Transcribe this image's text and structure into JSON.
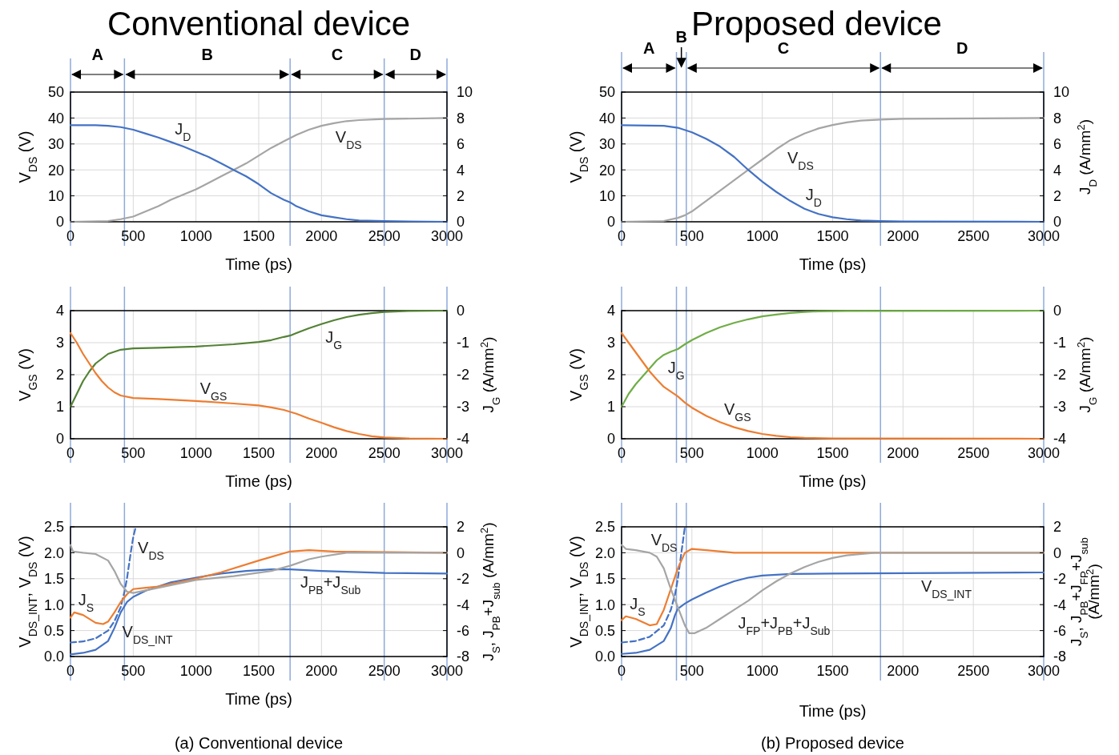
{
  "chart_data": [
    {
      "type": "line",
      "title": "Conventional device",
      "xlabel": "Time (ps)",
      "ylabel": "V$_{DS}$ (V)",
      "xlim": [
        0,
        3000
      ],
      "xticks": [
        0,
        500,
        1000,
        1500,
        2000,
        2500,
        3000
      ],
      "ylim": [
        0,
        50
      ],
      "yticks": [
        0,
        10,
        20,
        30,
        40,
        50
      ],
      "y2lim": [
        0,
        10
      ],
      "y2ticks": [
        0,
        2,
        4,
        6,
        8,
        10
      ],
      "grid": true,
      "series": [
        {
          "color": "#a5a5a5",
          "x": [
            0,
            300,
            400,
            500,
            600,
            700,
            800,
            900,
            1000,
            1100,
            1200,
            1300,
            1400,
            1500,
            1600,
            1700,
            1800,
            1900,
            2000,
            2100,
            2200,
            2300,
            2500,
            3000
          ],
          "values": [
            0,
            0.3,
            1,
            2,
            4,
            6,
            8.5,
            10.5,
            12.5,
            15,
            17.5,
            20,
            22.5,
            25.5,
            28.5,
            31,
            33.5,
            35.5,
            37,
            38,
            38.8,
            39.2,
            39.6,
            40
          ]
        },
        {
          "color": "#4472c4",
          "axis": "y2",
          "x": [
            0,
            200,
            300,
            400,
            500,
            600,
            700,
            800,
            900,
            1000,
            1100,
            1200,
            1300,
            1400,
            1500,
            1600,
            1700,
            1750,
            1800,
            1900,
            2000,
            2100,
            2200,
            2300,
            2500,
            3000
          ],
          "values": [
            7.45,
            7.45,
            7.4,
            7.3,
            7.1,
            6.8,
            6.5,
            6.15,
            5.8,
            5.4,
            5.0,
            4.5,
            4.0,
            3.5,
            2.9,
            2.2,
            1.7,
            1.5,
            1.2,
            0.8,
            0.5,
            0.35,
            0.2,
            0.1,
            0.05,
            0
          ]
        }
      ],
      "ref_lines": [
        {
          "axis": "x",
          "value": 0,
          "color": "#8eaadb"
        },
        {
          "axis": "x",
          "value": 430,
          "color": "#8eaadb"
        },
        {
          "axis": "x",
          "value": 1750,
          "color": "#8eaadb"
        },
        {
          "axis": "x",
          "value": 2500,
          "color": "#8eaadb"
        },
        {
          "axis": "x",
          "value": 3000,
          "color": "#8eaadb"
        }
      ],
      "annotations": [
        {
          "text": "J$_{D}$",
          "x": 800,
          "y": 30.75
        },
        {
          "text": "V$_{DS}$",
          "x": 2080,
          "y": 37.8
        },
        "A",
        "B",
        "C",
        "D"
      ]
    },
    {
      "type": "line",
      "title": "Proposed device",
      "xlabel": "Time (ps)",
      "ylabel": "V$_{DS}$ (V)",
      "y2label": "J$_{D}$ (A/mm$^{2}$)",
      "xlim": [
        0,
        3000
      ],
      "xticks": [
        0,
        500,
        1000,
        1500,
        2000,
        2500,
        3000
      ],
      "ylim": [
        0,
        50
      ],
      "yticks": [
        0,
        10,
        20,
        30,
        40,
        50
      ],
      "y2lim": [
        0,
        10
      ],
      "y2ticks": [
        0,
        2,
        4,
        6,
        8,
        10
      ],
      "grid": true,
      "series": [
        {
          "color": "#a5a5a5",
          "x": [
            0,
            300,
            400,
            450,
            500,
            600,
            700,
            800,
            900,
            1000,
            1100,
            1200,
            1300,
            1400,
            1500,
            1600,
            1700,
            1840,
            2000,
            3000
          ],
          "values": [
            0,
            0.3,
            1.5,
            2.5,
            4,
            8,
            12,
            16,
            20,
            24,
            28,
            31.5,
            34,
            36,
            37.3,
            38.3,
            39,
            39.4,
            39.7,
            40
          ]
        },
        {
          "color": "#4472c4",
          "axis": "y2",
          "x": [
            0,
            300,
            400,
            500,
            600,
            700,
            800,
            900,
            1000,
            1100,
            1200,
            1300,
            1400,
            1500,
            1600,
            1700,
            1840,
            2000,
            3000
          ],
          "values": [
            7.45,
            7.4,
            7.25,
            6.9,
            6.4,
            5.8,
            5.0,
            4.0,
            3.1,
            2.3,
            1.6,
            1.0,
            0.6,
            0.35,
            0.2,
            0.1,
            0.05,
            0.02,
            0
          ]
        }
      ],
      "ref_lines": [
        {
          "axis": "x",
          "value": 0,
          "color": "#8eaadb"
        },
        {
          "axis": "x",
          "value": 390,
          "color": "#8eaadb"
        },
        {
          "axis": "x",
          "value": 460,
          "color": "#8eaadb"
        },
        {
          "axis": "x",
          "value": 1840,
          "color": "#8eaadb"
        },
        {
          "axis": "x",
          "value": 3000,
          "color": "#8eaadb"
        }
      ],
      "annotations": [
        {
          "text": "V$_{DS}$",
          "x": 1150,
          "y": 29.75
        },
        {
          "text": "J$_{D}$",
          "x": 1280,
          "y": 5.6
        },
        "A",
        "B",
        "C",
        "D"
      ]
    },
    {
      "type": "line",
      "xlabel": "Time (ps)",
      "ylabel": "V$_{GS}$ (V)",
      "y2label": "J$_{G}$ (A/mm$^{2}$)",
      "xlim": [
        0,
        3000
      ],
      "xticks": [
        0,
        500,
        1000,
        1500,
        2000,
        2500,
        3000
      ],
      "ylim": [
        0,
        4
      ],
      "yticks": [
        0,
        1,
        2,
        3,
        4
      ],
      "y2lim": [
        -4,
        0
      ],
      "y2ticks": [
        -4,
        -3,
        -2,
        -1,
        0
      ],
      "grid": true,
      "series": [
        {
          "color": "#548235",
          "axis": "y2",
          "x": [
            0,
            50,
            100,
            150,
            200,
            300,
            400,
            500,
            700,
            1000,
            1300,
            1500,
            1600,
            1700,
            1750,
            1800,
            1900,
            2000,
            2100,
            2200,
            2300,
            2400,
            2500,
            2700,
            3000
          ],
          "values": [
            -3,
            -2.6,
            -2.2,
            -1.9,
            -1.65,
            -1.35,
            -1.22,
            -1.18,
            -1.16,
            -1.12,
            -1.05,
            -0.98,
            -0.92,
            -0.82,
            -0.78,
            -0.7,
            -0.55,
            -0.42,
            -0.3,
            -0.2,
            -0.13,
            -0.08,
            -0.04,
            -0.01,
            0
          ]
        },
        {
          "color": "#ed7d31",
          "x": [
            0,
            50,
            100,
            150,
            200,
            250,
            300,
            350,
            400,
            500,
            700,
            1000,
            1300,
            1500,
            1600,
            1700,
            1800,
            1900,
            2000,
            2100,
            2200,
            2300,
            2400,
            2500,
            2700,
            3000
          ],
          "values": [
            3.3,
            3.0,
            2.65,
            2.35,
            2.05,
            1.8,
            1.6,
            1.45,
            1.35,
            1.27,
            1.24,
            1.18,
            1.1,
            1.04,
            0.98,
            0.9,
            0.78,
            0.63,
            0.5,
            0.36,
            0.24,
            0.15,
            0.08,
            0.04,
            0.01,
            0
          ]
        }
      ],
      "ref_lines": [
        {
          "axis": "x",
          "value": 0,
          "color": "#8eaadb"
        },
        {
          "axis": "x",
          "value": 430,
          "color": "#8eaadb"
        },
        {
          "axis": "x",
          "value": 1750,
          "color": "#8eaadb"
        },
        {
          "axis": "x",
          "value": 2500,
          "color": "#8eaadb"
        },
        {
          "axis": "x",
          "value": 3000,
          "color": "#8eaadb"
        }
      ],
      "annotations": [
        {
          "text": "J$_{G}$",
          "x": 2000,
          "y": 3.58
        },
        {
          "text": "V$_{GS}$",
          "x": 1000,
          "y": 1.18
        }
      ]
    },
    {
      "type": "line",
      "xlabel": "Time (ps)",
      "ylabel": "V$_{GS}$ (V)",
      "y2label": "J$_{G}$ (A/mm$^{2}$)",
      "xlim": [
        0,
        3000
      ],
      "xticks": [
        0,
        500,
        1000,
        1500,
        2000,
        2500,
        3000
      ],
      "ylim": [
        0,
        4
      ],
      "yticks": [
        0,
        1,
        2,
        3,
        4
      ],
      "y2lim": [
        -4,
        0
      ],
      "y2ticks": [
        -4,
        -3,
        -2,
        -1,
        0
      ],
      "grid": true,
      "series": [
        {
          "color": "#70ad47",
          "axis": "y2",
          "x": [
            0,
            50,
            100,
            150,
            200,
            250,
            300,
            350,
            400,
            450,
            500,
            600,
            700,
            800,
            900,
            1000,
            1100,
            1200,
            1300,
            1400,
            1600,
            3000
          ],
          "values": [
            -3,
            -2.6,
            -2.3,
            -2.05,
            -1.8,
            -1.55,
            -1.38,
            -1.28,
            -1.2,
            -1.05,
            -0.92,
            -0.7,
            -0.52,
            -0.38,
            -0.27,
            -0.18,
            -0.12,
            -0.07,
            -0.04,
            -0.02,
            -0.01,
            0
          ]
        },
        {
          "color": "#ed7d31",
          "x": [
            0,
            50,
            100,
            150,
            200,
            250,
            300,
            350,
            400,
            450,
            500,
            600,
            700,
            800,
            900,
            1000,
            1100,
            1200,
            1300,
            1500,
            3000
          ],
          "values": [
            3.3,
            3.0,
            2.7,
            2.4,
            2.1,
            1.85,
            1.62,
            1.47,
            1.32,
            1.13,
            0.97,
            0.72,
            0.52,
            0.36,
            0.24,
            0.15,
            0.09,
            0.05,
            0.03,
            0.01,
            0
          ]
        }
      ],
      "ref_lines": [
        {
          "axis": "x",
          "value": 0,
          "color": "#8eaadb"
        },
        {
          "axis": "x",
          "value": 390,
          "color": "#8eaadb"
        },
        {
          "axis": "x",
          "value": 460,
          "color": "#8eaadb"
        },
        {
          "axis": "x",
          "value": 1840,
          "color": "#8eaadb"
        },
        {
          "axis": "x",
          "value": 3000,
          "color": "#8eaadb"
        }
      ],
      "annotations": [
        {
          "text": "J$_{G}$",
          "x": 300,
          "y": 2.62
        },
        {
          "text": "V$_{GS}$",
          "x": 700,
          "y": 0.52
        }
      ]
    },
    {
      "type": "line",
      "xlabel": "Time (ps)",
      "ylabel": "V$_{DS_INT}$, V$_{DS}$ (V)",
      "y2label": "J$_{S}$, J$_{PB}$+J$_{sub}$ (A/mm$^{2}$)",
      "xlim": [
        0,
        3000
      ],
      "xticks": [
        0,
        500,
        1000,
        1500,
        2000,
        2500,
        3000
      ],
      "ylim": [
        0,
        2.5
      ],
      "yticks": [
        {
          "value": 0,
          "label": "0.0"
        },
        {
          "value": 0.5,
          "label": "0.5"
        },
        {
          "value": 1,
          "label": "1.0"
        },
        {
          "value": 1.5,
          "label": "1.5"
        },
        {
          "value": 2,
          "label": "2.0"
        },
        {
          "value": 2.5,
          "label": "2.5"
        }
      ],
      "y2lim": [
        -8,
        2
      ],
      "y2ticks": [
        -8,
        -6,
        -4,
        -2,
        0,
        2
      ],
      "grid": true,
      "series": [
        {
          "color": "#4472c4",
          "line_style": "dashed",
          "x": [
            0,
            100,
            200,
            300,
            350,
            400,
            430,
            450,
            480,
            500,
            520
          ],
          "values": [
            0.27,
            0.29,
            0.35,
            0.5,
            0.68,
            0.95,
            1.25,
            1.5,
            2.0,
            2.3,
            2.5
          ]
        },
        {
          "color": "#4472c4",
          "x": [
            0,
            100,
            200,
            300,
            350,
            400,
            450,
            500,
            600,
            700,
            800,
            1000,
            1200,
            1400,
            1600,
            1750,
            2000,
            2500,
            3000
          ],
          "values": [
            0.04,
            0.07,
            0.13,
            0.3,
            0.55,
            0.85,
            1.05,
            1.15,
            1.27,
            1.35,
            1.43,
            1.52,
            1.6,
            1.65,
            1.68,
            1.68,
            1.65,
            1.61,
            1.6
          ]
        },
        {
          "color": "#ed7d31",
          "axis": "y2",
          "x": [
            0,
            30,
            100,
            200,
            260,
            300,
            350,
            400,
            450,
            500,
            600,
            700,
            1000,
            1200,
            1500,
            1750,
            1900,
            2100,
            3000
          ],
          "values": [
            -5,
            -4.6,
            -4.8,
            -5.4,
            -5.5,
            -5.3,
            -4.6,
            -3.8,
            -3.2,
            -2.8,
            -2.7,
            -2.6,
            -2,
            -1.5,
            -0.6,
            0.1,
            0.2,
            0.1,
            0
          ]
        },
        {
          "color": "#a5a5a5",
          "axis": "y2",
          "x": [
            0,
            20,
            100,
            200,
            300,
            350,
            400,
            450,
            500,
            600,
            700,
            1000,
            1300,
            1600,
            1750,
            1900,
            2000,
            2200,
            3000
          ],
          "values": [
            0.6,
            0.1,
            0,
            -0.1,
            -0.6,
            -1.4,
            -2.4,
            -3,
            -3.1,
            -2.9,
            -2.7,
            -2.1,
            -1.8,
            -1.4,
            -1,
            -0.5,
            -0.3,
            0,
            0
          ]
        }
      ],
      "ref_lines": [
        {
          "axis": "x",
          "value": 0,
          "color": "#8eaadb"
        },
        {
          "axis": "x",
          "value": 430,
          "color": "#8eaadb"
        },
        {
          "axis": "x",
          "value": 1750,
          "color": "#8eaadb"
        },
        {
          "axis": "x",
          "value": 2500,
          "color": "#8eaadb"
        },
        {
          "axis": "x",
          "value": 3000,
          "color": "#8eaadb"
        }
      ],
      "annotations": [
        {
          "text": "V$_{DS}$",
          "x": 505,
          "y": 2.35
        },
        {
          "text": "J$_{S}$",
          "x": 30,
          "y": 0.85
        },
        {
          "text": "V$_{DS_INT}$",
          "x": 380,
          "y": 0.73
        },
        {
          "text": "J$_{PB}$+J$_{Sub}$",
          "x": 1800,
          "y": 1.675
        },
        "(a) Conventional device"
      ]
    },
    {
      "type": "line",
      "xlabel": "Time (ps)",
      "ylabel": "V$_{DS_INT}$, V$_{DS}$ (V)",
      "y2label": "J$_{S}$, J$_{PB}$+J$_{FP}$+J$_{sub}$\n(A/mm$^{2}$)",
      "xlim": [
        0,
        3000
      ],
      "xticks": [
        0,
        500,
        1000,
        1500,
        2000,
        2500,
        3000
      ],
      "ylim": [
        0,
        2.5
      ],
      "yticks": [
        {
          "value": 0,
          "label": "0.0"
        },
        {
          "value": 0.5,
          "label": "0.5"
        },
        {
          "value": 1,
          "label": "1.0"
        },
        {
          "value": 1.5,
          "label": "1.5"
        },
        {
          "value": 2,
          "label": "2.0"
        },
        {
          "value": 2.5,
          "label": "2.5"
        }
      ],
      "y2lim": [
        -8,
        2
      ],
      "y2ticks": [
        -8,
        -6,
        -4,
        -2,
        0,
        2
      ],
      "grid": true,
      "series": [
        {
          "color": "#4472c4",
          "line_style": "dashed",
          "x": [
            0,
            100,
            200,
            300,
            350,
            380,
            400,
            420,
            440,
            450
          ],
          "values": [
            0.27,
            0.3,
            0.38,
            0.6,
            0.9,
            1.2,
            1.5,
            1.9,
            2.3,
            2.5
          ]
        },
        {
          "color": "#4472c4",
          "x": [
            0,
            100,
            200,
            300,
            350,
            380,
            400,
            450,
            500,
            600,
            700,
            800,
            900,
            1000,
            1200,
            1500,
            3000
          ],
          "values": [
            0.05,
            0.07,
            0.13,
            0.3,
            0.55,
            0.8,
            0.92,
            1.02,
            1.1,
            1.23,
            1.35,
            1.45,
            1.52,
            1.56,
            1.59,
            1.6,
            1.62
          ]
        },
        {
          "color": "#ed7d31",
          "axis": "y2",
          "x": [
            0,
            30,
            100,
            200,
            250,
            300,
            350,
            400,
            450,
            500,
            600,
            800,
            1000,
            3000
          ],
          "values": [
            -5.2,
            -4.9,
            -5.1,
            -5.6,
            -5.5,
            -4.4,
            -2.8,
            -1.2,
            0,
            0.3,
            0.2,
            0,
            0,
            0
          ]
        },
        {
          "color": "#a5a5a5",
          "axis": "y2",
          "x": [
            0,
            30,
            100,
            200,
            250,
            300,
            350,
            400,
            450,
            480,
            520,
            600,
            700,
            800,
            900,
            1000,
            1100,
            1200,
            1300,
            1400,
            1500,
            1600,
            1800,
            3000
          ],
          "values": [
            0.6,
            0.3,
            0.2,
            0,
            -0.3,
            -1.2,
            -2.8,
            -4.2,
            -5.6,
            -6.2,
            -6.2,
            -5.8,
            -5.1,
            -4.4,
            -3.7,
            -2.9,
            -2.2,
            -1.6,
            -1.1,
            -0.7,
            -0.4,
            -0.2,
            0,
            0
          ]
        }
      ],
      "ref_lines": [
        {
          "axis": "x",
          "value": 0,
          "color": "#8eaadb"
        },
        {
          "axis": "x",
          "value": 390,
          "color": "#8eaadb"
        },
        {
          "axis": "x",
          "value": 460,
          "color": "#8eaadb"
        },
        {
          "axis": "x",
          "value": 1840,
          "color": "#8eaadb"
        },
        {
          "axis": "x",
          "value": 3000,
          "color": "#8eaadb"
        }
      ],
      "annotations": [
        {
          "text": "V$_{DS}$",
          "x": 450,
          "y": 2.5
        },
        {
          "text": "J$_{S}$",
          "x": 30,
          "y": 0.775
        },
        {
          "text": "V$_{DS_INT}$",
          "x": 2100,
          "y": 1.608
        },
        {
          "text": "J$_{FP}$+J$_{PB}$+J$_{Sub}$",
          "x": 800,
          "y": 0.9
        },
        "(b) Proposed device"
      ]
    }
  ]
}
